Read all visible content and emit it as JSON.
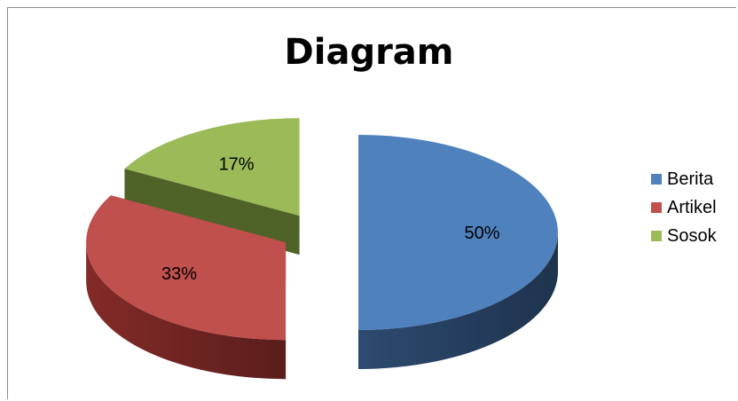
{
  "chart_data": {
    "type": "pie",
    "title": "Diagram",
    "categories": [
      "Berita",
      "Artikel",
      "Sosok"
    ],
    "values": [
      50,
      33,
      17
    ],
    "labels": [
      "50%",
      "33%",
      "17%"
    ],
    "colors": [
      "#4f81bd",
      "#c0504d",
      "#9bbb59"
    ],
    "side_colors": [
      "#2f4e76",
      "#8a2d2a",
      "#4f6228"
    ],
    "style": "3D exploded pie",
    "legend_position": "right"
  }
}
